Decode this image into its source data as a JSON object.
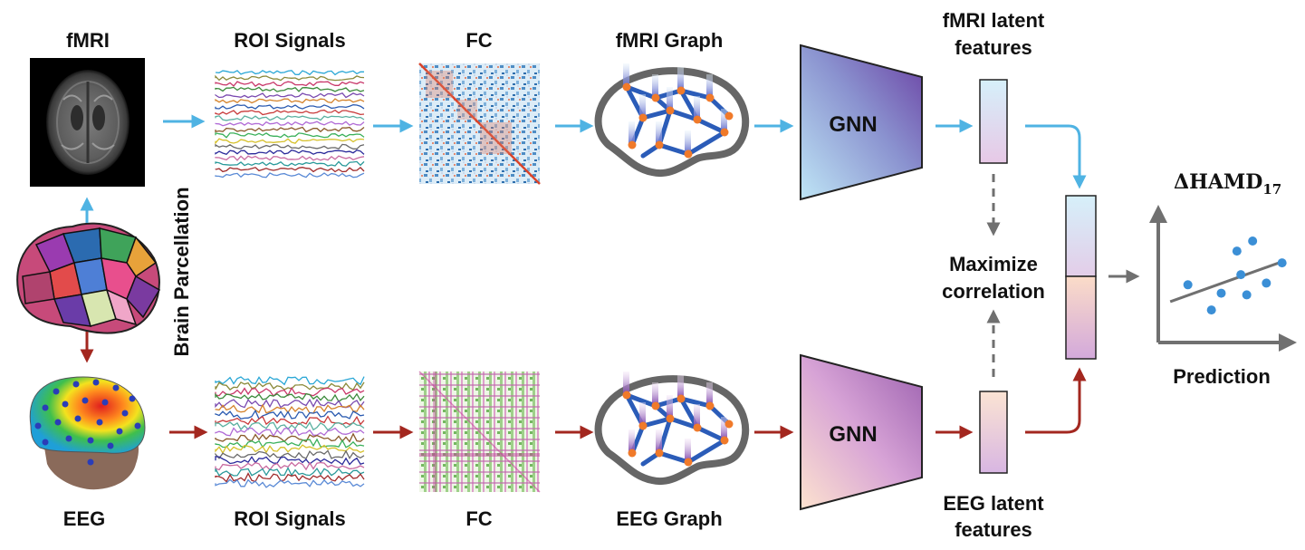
{
  "labels": {
    "fmri": "fMRI",
    "eeg": "EEG",
    "roi_top": "ROI Signals",
    "roi_bottom": "ROI Signals",
    "fc_top": "FC",
    "fc_bottom": "FC",
    "fmri_graph": "fMRI Graph",
    "eeg_graph": "EEG Graph",
    "gnn_top": "GNN",
    "gnn_bottom": "GNN",
    "fmri_latent_line1": "fMRI latent",
    "fmri_latent_line2": "features",
    "eeg_latent_line1": "EEG latent",
    "eeg_latent_line2": "features",
    "maximize_line1": "Maximize",
    "maximize_line2": "correlation",
    "brain_parcellation": "Brain Parcellation",
    "prediction": "Prediction",
    "hamd_base": "ΔHAMD",
    "hamd_sub": "17"
  },
  "colors": {
    "fmri_arrow": "#4fb3e3",
    "eeg_arrow": "#a3271f",
    "gray_arrow": "#707070",
    "scatter_point": "#3b8fd6"
  },
  "chart_data": {
    "type": "scatter",
    "title": "ΔHAMD17",
    "xlabel": "",
    "ylabel": "",
    "x": [
      1,
      2.2,
      2.7,
      3.5,
      3.7,
      4,
      4.3,
      5,
      5.8
    ],
    "y": [
      3,
      1.5,
      2.5,
      5,
      3.6,
      2.4,
      5.6,
      3.1,
      4.3
    ],
    "legend": "none",
    "grid": false
  }
}
